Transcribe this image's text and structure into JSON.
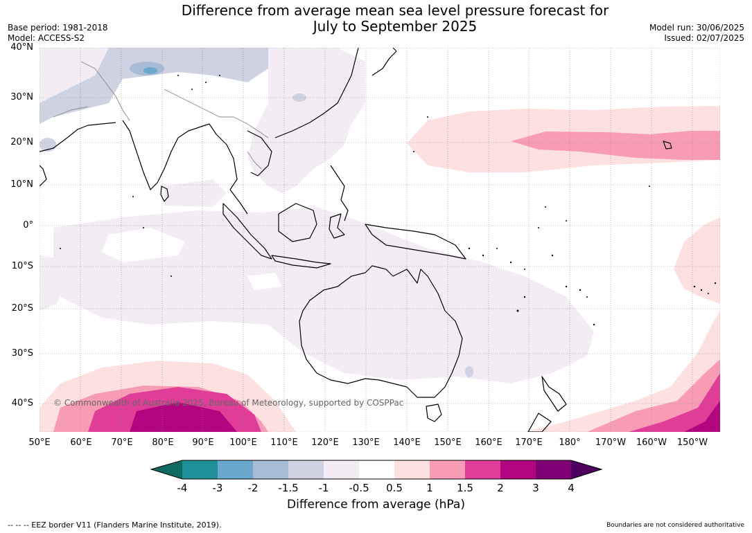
{
  "title": {
    "line1": "Difference from average mean sea level pressure forecast for",
    "line2": "July to September 2025"
  },
  "meta": {
    "base_period": "Base period: 1981-2018",
    "model": "Model: ACCESS-S2",
    "model_run": "Model run: 30/06/2025",
    "issued": "Issued: 02/07/2025"
  },
  "lat_labels": [
    "40°N",
    "30°N",
    "20°N",
    "10°N",
    "0°",
    "10°S",
    "20°S",
    "30°S",
    "40°S"
  ],
  "lon_labels": [
    "50°E",
    "60°E",
    "70°E",
    "80°E",
    "90°E",
    "100°E",
    "110°E",
    "120°E",
    "130°E",
    "140°E",
    "150°E",
    "160°E",
    "170°E",
    "180°",
    "170°W",
    "160°W",
    "150°W"
  ],
  "copyright": "© Commonwealth of Australia 2025, Bureau of Meteorology, supported by COSPPac",
  "colorbar": {
    "title": "Difference from average (hPa)",
    "tick_labels": [
      "-4",
      "-3",
      "-2",
      "-1.5",
      "-1",
      "-0.5",
      "0.5",
      "1",
      "1.5",
      "2",
      "3",
      "4"
    ],
    "colors": [
      "#106a5f",
      "#1f8f98",
      "#6aa8cf",
      "#a9bcd6",
      "#cfd2e3",
      "#f3ecf5",
      "#ffffff",
      "#fde0e0",
      "#f89cb6",
      "#df3d98",
      "#b1067f",
      "#7e0074",
      "#4e005f"
    ]
  },
  "footer": {
    "eez": "--  --  -- EEZ border V11 (Flanders Marine Institute, 2019).",
    "boundaries": "Boundaries are not considered authoritative"
  }
}
